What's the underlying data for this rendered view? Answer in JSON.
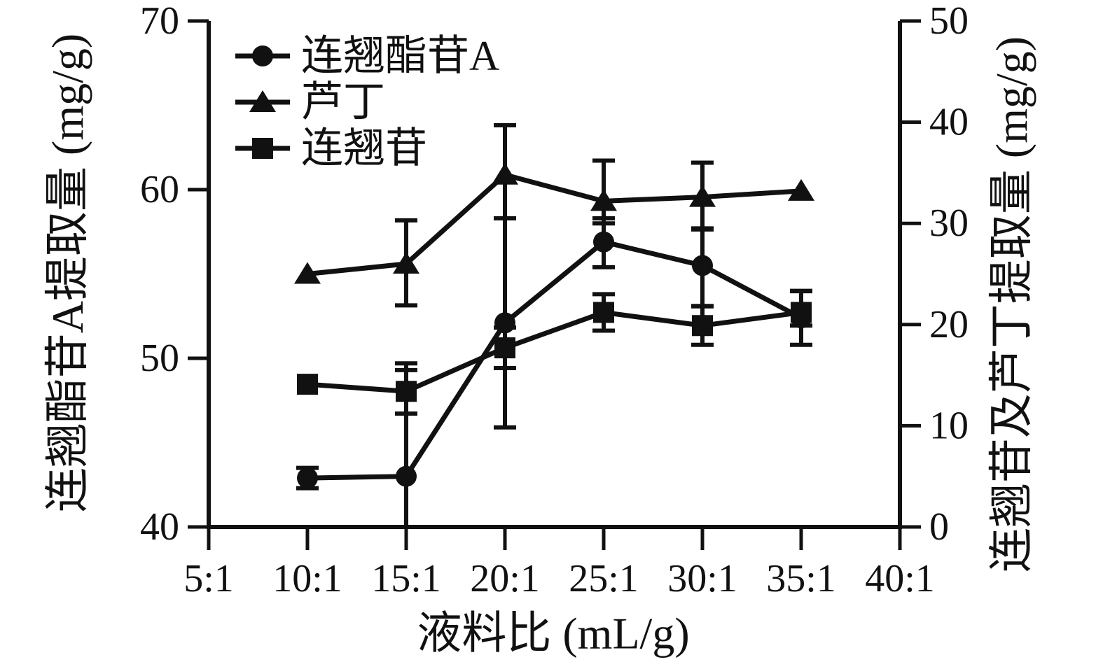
{
  "figure": {
    "background": "#ffffff",
    "ink": "#111111"
  },
  "chart_data": {
    "type": "line",
    "title": "",
    "grid": false,
    "legend_position": "top-left-inside",
    "x_axis": {
      "label": "液料比 (mL/g)",
      "categories": [
        "5:1",
        "10:1",
        "15:1",
        "20:1",
        "25:1",
        "30:1",
        "35:1",
        "40:1"
      ]
    },
    "left_axis": {
      "label": "连翘酯苷A提取量 (mg/g)",
      "min": 40,
      "max": 70,
      "ticks": [
        40,
        50,
        60,
        70
      ]
    },
    "right_axis": {
      "label": "连翘苷及芦丁提取量 (mg/g)",
      "min": 0,
      "max": 50,
      "ticks": [
        0,
        10,
        20,
        30,
        40,
        50
      ]
    },
    "legend": [
      {
        "label": "连翘酯苷A",
        "marker": "circle"
      },
      {
        "label": "芦丁",
        "marker": "triangle"
      },
      {
        "label": "连翘苷",
        "marker": "square"
      }
    ],
    "series": [
      {
        "name": "连翘酯苷A",
        "axis": "left",
        "marker": "circle",
        "x": [
          "10:1",
          "15:1",
          "20:1",
          "25:1",
          "30:1",
          "35:1"
        ],
        "values": [
          42.9,
          43.0,
          52.1,
          56.9,
          55.5,
          52.4
        ],
        "err_up": [
          0.6,
          6.7,
          6.2,
          1.4,
          2.2,
          1.6
        ],
        "err_down": [
          0.6,
          6.7,
          6.2,
          1.5,
          2.4,
          1.6
        ]
      },
      {
        "name": "芦丁",
        "axis": "right",
        "marker": "triangle",
        "x": [
          "10:1",
          "15:1",
          "20:1",
          "25:1",
          "30:1",
          "35:1"
        ],
        "values": [
          25.0,
          26.0,
          34.8,
          32.2,
          32.6,
          33.2
        ],
        "err_up": [
          0,
          4.3,
          4.9,
          4.0,
          3.4,
          0
        ],
        "err_down": [
          0,
          4.1,
          4.3,
          2.2,
          3.2,
          0
        ]
      },
      {
        "name": "连翘苷",
        "axis": "right",
        "marker": "square",
        "x": [
          "10:1",
          "15:1",
          "20:1",
          "25:1",
          "30:1",
          "35:1"
        ],
        "values": [
          14.1,
          13.4,
          17.7,
          21.2,
          19.9,
          21.2
        ],
        "err_up": [
          0,
          2.1,
          2.0,
          1.8,
          1.9,
          2.1
        ],
        "err_down": [
          0,
          2.2,
          2.0,
          1.8,
          1.9,
          1.3
        ]
      }
    ]
  }
}
